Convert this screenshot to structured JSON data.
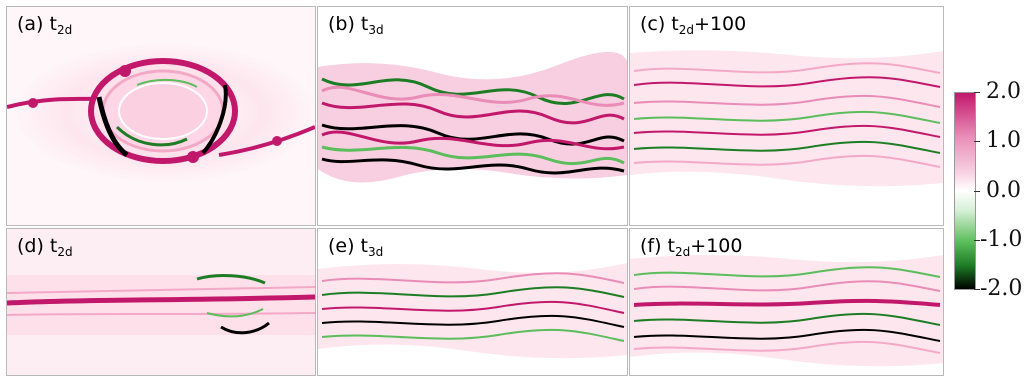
{
  "panels": [
    {
      "id": "a",
      "prefix": "(a) t",
      "sub": "2d",
      "suffix": ""
    },
    {
      "id": "b",
      "prefix": "(b) t",
      "sub": "3d",
      "suffix": ""
    },
    {
      "id": "c",
      "prefix": "(c) t",
      "sub": "2d",
      "suffix": "+100"
    },
    {
      "id": "d",
      "prefix": "(d) t",
      "sub": "2d",
      "suffix": ""
    },
    {
      "id": "e",
      "prefix": "(e) t",
      "sub": "3d",
      "suffix": ""
    },
    {
      "id": "f",
      "prefix": "(f) t",
      "sub": "2d",
      "suffix": "+100"
    }
  ],
  "colorbar": {
    "ticks": [
      "2.0",
      "1.0",
      "0.0",
      "-1.0",
      "-2.0"
    ],
    "colors": {
      "max": "#c2186b",
      "mid": "#ffffff",
      "min_green": "#1d7d24",
      "min": "#000000"
    }
  }
}
